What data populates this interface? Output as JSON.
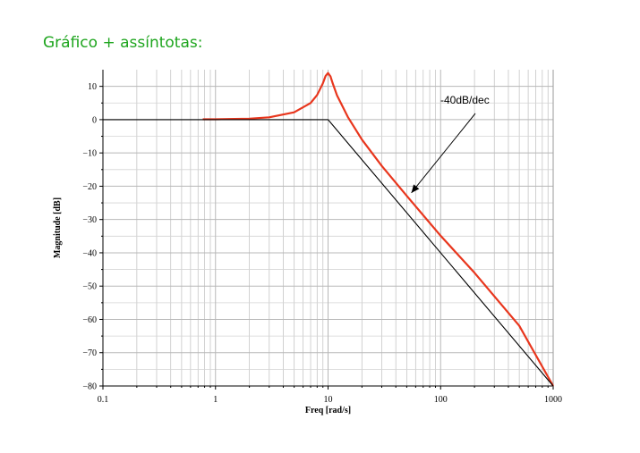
{
  "slide": {
    "title": "Gráfico + assíntotas:"
  },
  "chart_data": {
    "type": "line",
    "xscale": "log",
    "xlim": [
      0.1,
      1000
    ],
    "ylim": [
      -80,
      15
    ],
    "xlabel": "Freq [rad/s]",
    "ylabel": "Magnitude [dB]",
    "x_ticks": [
      0.1,
      1,
      10,
      100,
      1000
    ],
    "x_tick_labels": [
      "0.1",
      "1",
      "10",
      "100",
      "1000"
    ],
    "y_ticks": [
      10,
      0,
      -10,
      -20,
      -30,
      -40,
      -50,
      -60,
      -70,
      -80
    ],
    "y_tick_labels": [
      "10",
      "0",
      "−10",
      "−20",
      "−30",
      "−40",
      "−50",
      "−60",
      "−70",
      "−80"
    ],
    "grid": true,
    "series": [
      {
        "color": "#e8361d",
        "x": [
          0.77,
          1,
          2,
          3,
          5,
          7,
          8,
          9,
          9.5,
          10,
          10.5,
          11,
          12,
          15,
          20,
          30,
          50,
          100,
          200,
          500,
          1000
        ],
        "y": [
          0.1,
          0.1,
          0.3,
          0.7,
          2.2,
          5.0,
          7.4,
          10.9,
          13.1,
          14.0,
          13.0,
          10.9,
          7.3,
          0.8,
          -6.0,
          -13.9,
          -22.9,
          -34.9,
          -46.0,
          -61.9,
          -80.0
        ]
      },
      {
        "color": "#000000",
        "x": [
          0.1,
          10,
          1000
        ],
        "y": [
          0,
          0,
          -80
        ]
      }
    ],
    "annotations": [
      {
        "text": "-40dB/dec",
        "arrow_to": [
          55,
          -22
        ]
      }
    ]
  }
}
